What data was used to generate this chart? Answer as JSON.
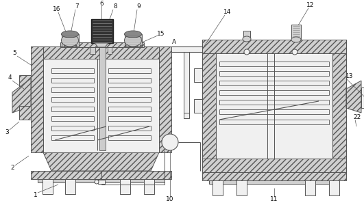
{
  "fig_width": 5.31,
  "fig_height": 2.97,
  "dpi": 100,
  "bg": "#ffffff",
  "lc": "#555555",
  "lc_dark": "#333333",
  "hatch": "////",
  "hatch_color": "#999999"
}
